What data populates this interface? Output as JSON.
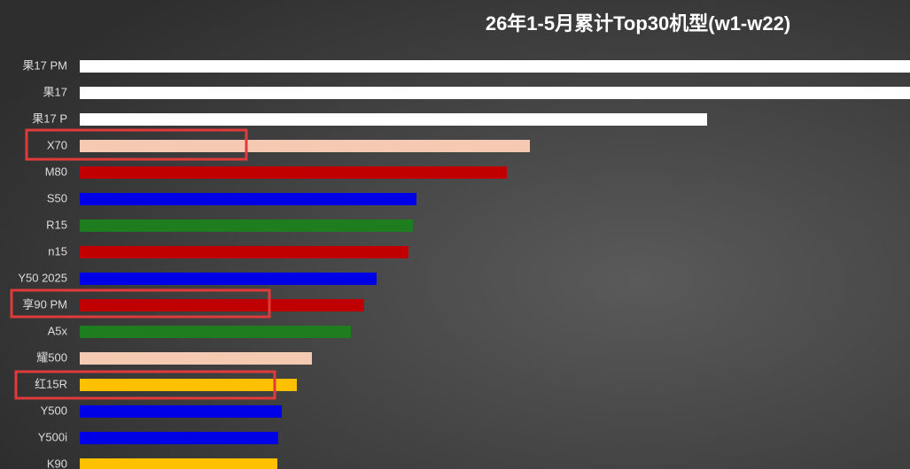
{
  "chart_data": {
    "type": "bar",
    "orientation": "horizontal",
    "title": "26年1-5月累计Top30机型(w1-w22)",
    "categories": [
      "果17 PM",
      "果17",
      "果17 P",
      "X70",
      "M80",
      "S50",
      "R15",
      "n15",
      "Y50 2025",
      "享90 PM",
      "A5x",
      "耀500",
      "红15R",
      "Y500",
      "Y500i",
      "K90"
    ],
    "values": [
      960,
      950,
      708,
      508,
      482,
      380,
      376,
      371,
      335,
      321,
      306,
      262,
      245,
      228,
      224,
      223
    ],
    "colors": [
      "#ffffff",
      "#ffffff",
      "#ffffff",
      "#f6c9b2",
      "#c00000",
      "#0000e6",
      "#1e7d1e",
      "#c00000",
      "#0000e6",
      "#c00000",
      "#1e7d1e",
      "#f6c9b2",
      "#ffc000",
      "#0000e6",
      "#0000e6",
      "#ffc000"
    ],
    "xlim": [
      0,
      937
    ]
  }
}
